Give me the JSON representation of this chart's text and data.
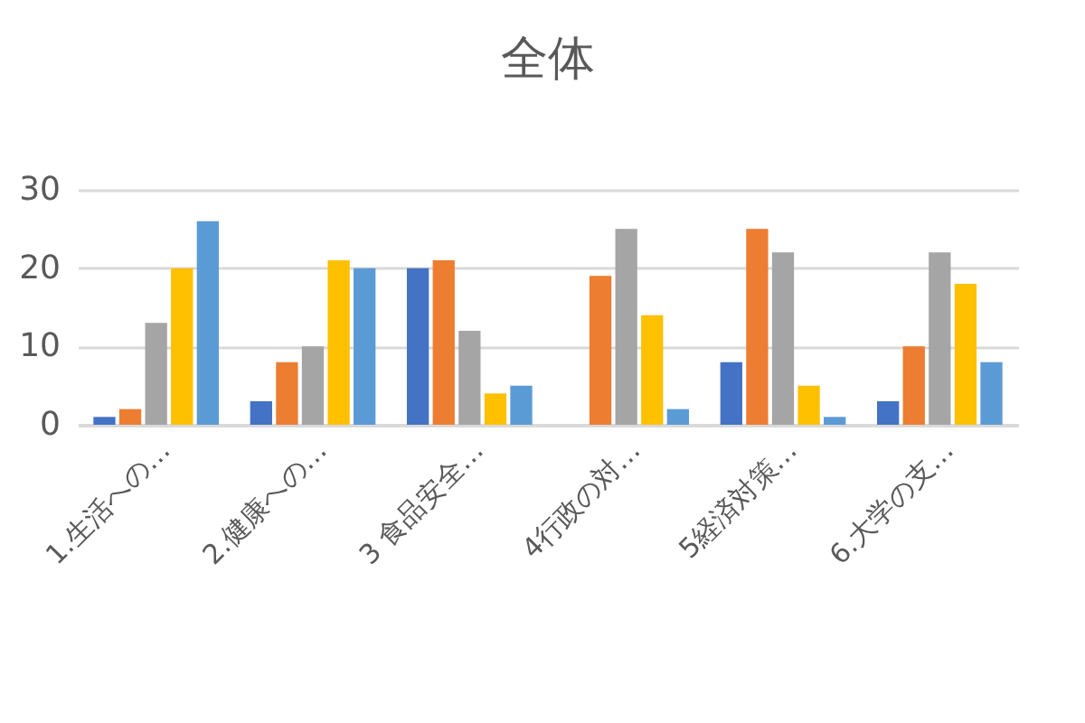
{
  "chart_data": {
    "type": "bar",
    "title": "全体",
    "categories": [
      "1.生活への…",
      "2.健康への…",
      "3 食品安全…",
      "4行政の対…",
      "5経済対策…",
      "6.大学の支…"
    ],
    "series": [
      {
        "color": "#4472c4",
        "values": [
          1,
          3,
          20,
          0,
          8,
          3
        ]
      },
      {
        "color": "#ed7d31",
        "values": [
          2,
          8,
          21,
          19,
          25,
          10
        ]
      },
      {
        "color": "#a5a5a5",
        "values": [
          13,
          10,
          12,
          25,
          22,
          22
        ]
      },
      {
        "color": "#ffc000",
        "values": [
          20,
          21,
          4,
          14,
          5,
          18
        ]
      },
      {
        "color": "#5b9bd5",
        "values": [
          26,
          20,
          5,
          2,
          1,
          8
        ]
      }
    ],
    "ylim": [
      0,
      30
    ],
    "yticks": [
      0,
      10,
      20,
      30
    ],
    "grid": "y"
  }
}
